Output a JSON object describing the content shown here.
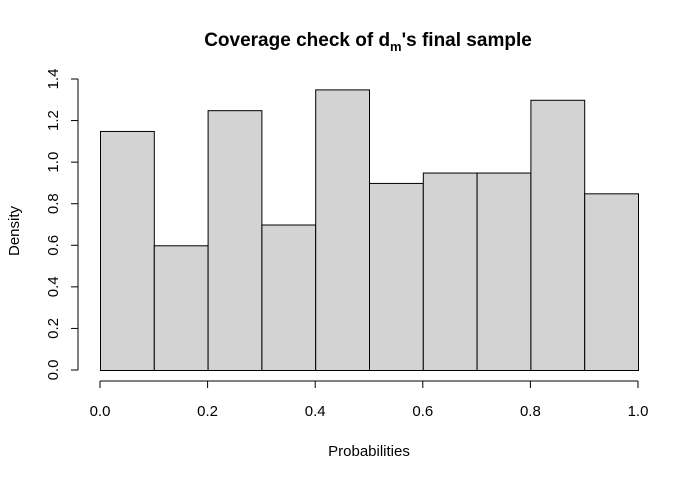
{
  "chart_data": {
    "type": "bar",
    "title_main": "Coverage check of d",
    "title_sub": "m",
    "title_tail": "'s final sample",
    "xlabel": "Probabilities",
    "ylabel": "Density",
    "bin_edges": [
      0.0,
      0.1,
      0.2,
      0.3,
      0.4,
      0.5,
      0.6,
      0.7,
      0.8,
      0.9,
      1.0
    ],
    "values": [
      1.15,
      0.6,
      1.25,
      0.7,
      1.35,
      0.9,
      0.95,
      0.95,
      1.3,
      0.85
    ],
    "xlim": [
      0.0,
      1.0
    ],
    "ylim": [
      0.0,
      1.4
    ],
    "x_ticks": [
      0.0,
      0.2,
      0.4,
      0.6,
      0.8,
      1.0
    ],
    "x_tick_labels": [
      "0.0",
      "0.2",
      "0.4",
      "0.6",
      "0.8",
      "1.0"
    ],
    "y_ticks": [
      0.0,
      0.2,
      0.4,
      0.6,
      0.8,
      1.0,
      1.2,
      1.4
    ],
    "y_tick_labels": [
      "0.0",
      "0.2",
      "0.4",
      "0.6",
      "0.8",
      "1.0",
      "1.2",
      "1.4"
    ],
    "bar_fill": "#d3d3d3",
    "bar_stroke": "#000000",
    "grid": false
  }
}
